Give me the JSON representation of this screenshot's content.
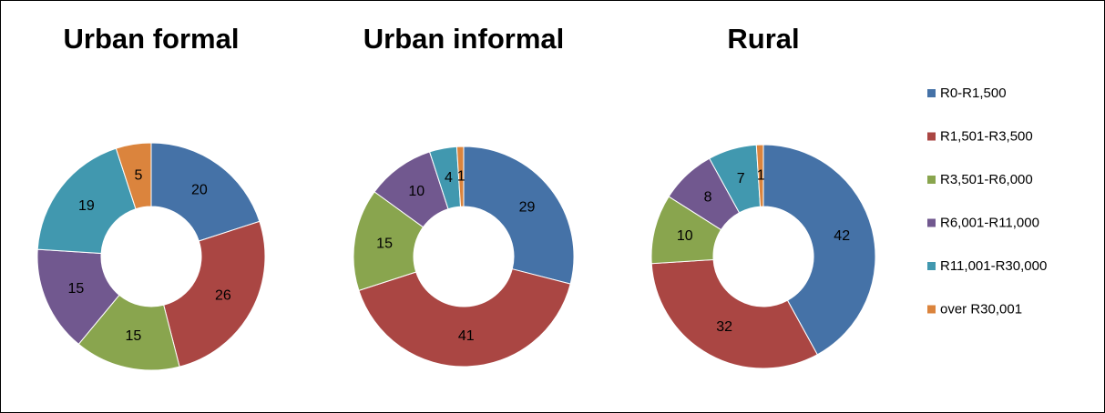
{
  "chart_data": [
    {
      "type": "pie",
      "title": "Urban formal",
      "categories": [
        "R0-R1,500",
        "R1,501-R3,500",
        "R3,501-R6,000",
        "R6,001-R11,000",
        "R11,001-R30,000",
        "over R30,001"
      ],
      "colors": [
        "#4572a7",
        "#aa4643",
        "#89a54e",
        "#71588f",
        "#4198af",
        "#db843d"
      ],
      "values": [
        20,
        26,
        15,
        15,
        19,
        5
      ]
    },
    {
      "type": "pie",
      "title": "Urban informal",
      "values": [
        29,
        41,
        15,
        10,
        4,
        1
      ]
    },
    {
      "type": "pie",
      "title": "Rural",
      "values": [
        42,
        32,
        10,
        8,
        7,
        1
      ]
    }
  ]
}
